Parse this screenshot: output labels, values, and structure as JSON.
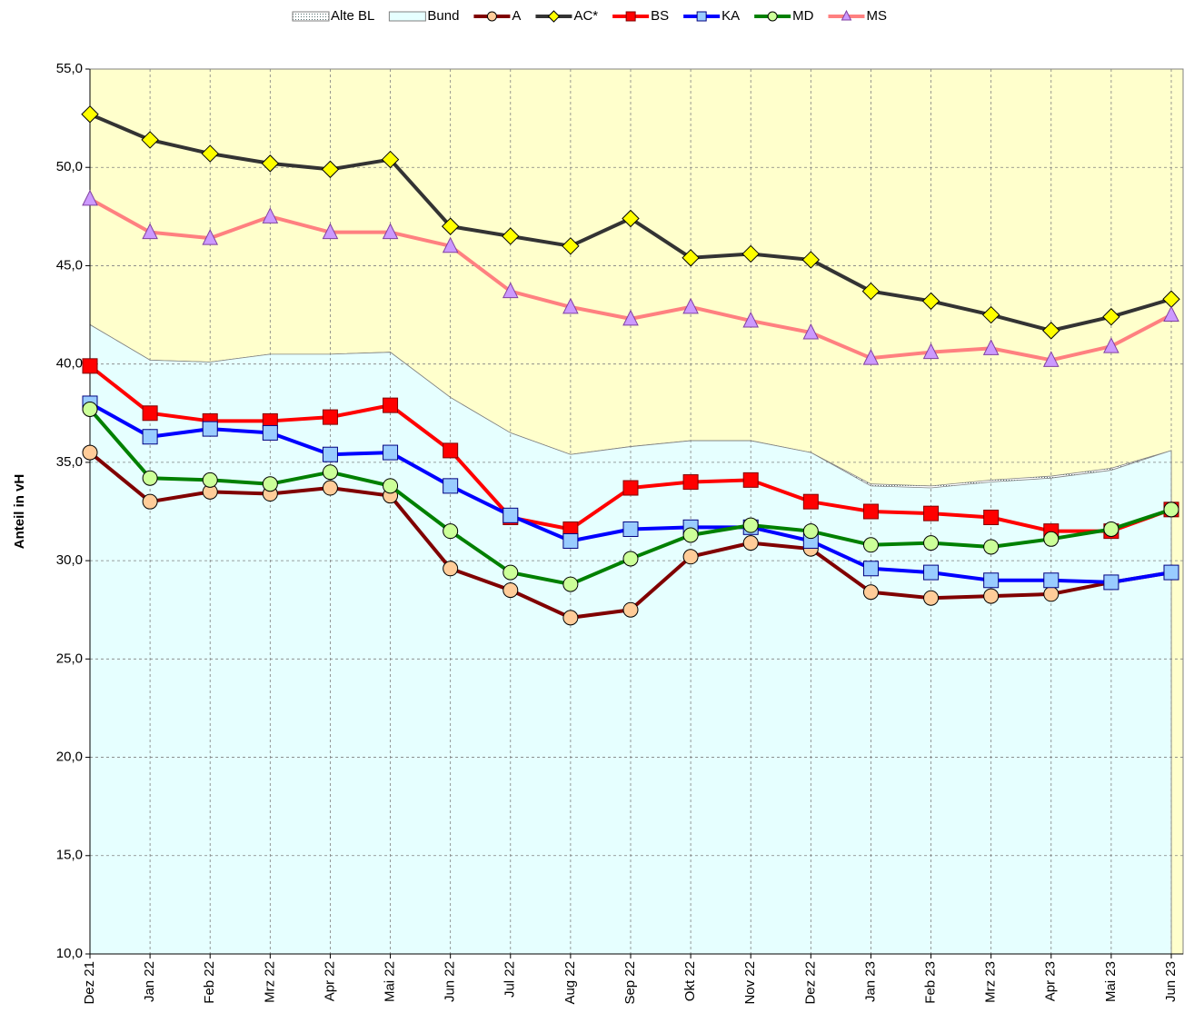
{
  "chart_data": {
    "type": "line",
    "y_label": "Anteil in vH",
    "background": "#ffffcc",
    "grid": true,
    "legend": "top",
    "categories": [
      "Dez 21",
      "Jan 22",
      "Feb 22",
      "Mrz 22",
      "Apr 22",
      "Mai 22",
      "Jun 22",
      "Jul 22",
      "Aug 22",
      "Sep 22",
      "Okt 22",
      "Nov 22",
      "Dez 22",
      "Jan 23",
      "Feb 23",
      "Mrz 23",
      "Apr 23",
      "Mai 23",
      "Jun 23"
    ],
    "ylim": [
      10,
      55
    ],
    "yticks": [
      {
        "value": 10,
        "label": "10,0"
      },
      {
        "value": 15,
        "label": "15,0"
      },
      {
        "value": 20,
        "label": "20,0"
      },
      {
        "value": 25,
        "label": "25,0"
      },
      {
        "value": 30,
        "label": "30,0"
      },
      {
        "value": 35,
        "label": "35,0"
      },
      {
        "value": 40,
        "label": "40,0"
      },
      {
        "value": 45,
        "label": "45,0"
      },
      {
        "value": 50,
        "label": "50,0"
      },
      {
        "value": 55,
        "label": "55,0"
      }
    ],
    "series": [
      {
        "name": "Alte BL",
        "style": "area",
        "color": "#b0c8c8",
        "values": [
          42.0,
          40.2,
          40.1,
          40.5,
          40.5,
          40.6,
          38.3,
          36.5,
          35.4,
          35.8,
          36.1,
          36.1,
          35.5,
          33.9,
          33.8,
          34.1,
          34.3,
          34.7,
          35.6
        ]
      },
      {
        "name": "Bund",
        "style": "area",
        "color": "#e6ffff",
        "values": [
          42.0,
          40.2,
          40.1,
          40.5,
          40.5,
          40.6,
          38.3,
          36.5,
          35.4,
          35.8,
          36.1,
          36.1,
          35.5,
          33.8,
          33.7,
          34.0,
          34.2,
          34.6,
          35.6
        ]
      },
      {
        "name": "A",
        "style": "line",
        "color": "#800000",
        "marker": "circle",
        "marker_color": "#ffcc99",
        "values": [
          35.5,
          33.0,
          33.5,
          33.4,
          33.7,
          33.3,
          29.6,
          28.5,
          27.1,
          27.5,
          30.2,
          30.9,
          30.6,
          28.4,
          28.1,
          28.2,
          28.3,
          28.9,
          29.4
        ]
      },
      {
        "name": "AC*",
        "style": "line",
        "color": "#333333",
        "marker": "diamond",
        "marker_color": "#ffff00",
        "values": [
          52.7,
          51.4,
          50.7,
          50.2,
          49.9,
          50.4,
          47.0,
          46.5,
          46.0,
          47.4,
          45.4,
          45.6,
          45.3,
          43.7,
          43.2,
          42.5,
          41.7,
          42.4,
          43.3
        ]
      },
      {
        "name": "BS",
        "style": "line",
        "color": "#ff0000",
        "marker": "square",
        "marker_color": "#ff0000",
        "values": [
          39.9,
          37.5,
          37.1,
          37.1,
          37.3,
          37.9,
          35.6,
          32.2,
          31.6,
          33.7,
          34.0,
          34.1,
          33.0,
          32.5,
          32.4,
          32.2,
          31.5,
          31.5,
          32.6
        ]
      },
      {
        "name": "KA",
        "style": "line",
        "color": "#0000ff",
        "marker": "square",
        "marker_color": "#99ccff",
        "values": [
          38.0,
          36.3,
          36.7,
          36.5,
          35.4,
          35.5,
          33.8,
          32.3,
          31.0,
          31.6,
          31.7,
          31.7,
          31.0,
          29.6,
          29.4,
          29.0,
          29.0,
          28.9,
          29.4
        ]
      },
      {
        "name": "MD",
        "style": "line",
        "color": "#008000",
        "marker": "circle",
        "marker_color": "#ccff99",
        "values": [
          37.7,
          34.2,
          34.1,
          33.9,
          34.5,
          33.8,
          31.5,
          29.4,
          28.8,
          30.1,
          31.3,
          31.8,
          31.5,
          30.8,
          30.9,
          30.7,
          31.1,
          31.6,
          32.6
        ]
      },
      {
        "name": "MS",
        "style": "line",
        "color": "#ff8080",
        "marker": "triangle",
        "marker_color": "#cc99ff",
        "values": [
          48.4,
          46.7,
          46.4,
          47.5,
          46.7,
          46.7,
          46.0,
          43.7,
          42.9,
          42.3,
          42.9,
          42.2,
          41.6,
          40.3,
          40.6,
          40.8,
          40.2,
          40.9,
          42.5
        ]
      }
    ]
  }
}
